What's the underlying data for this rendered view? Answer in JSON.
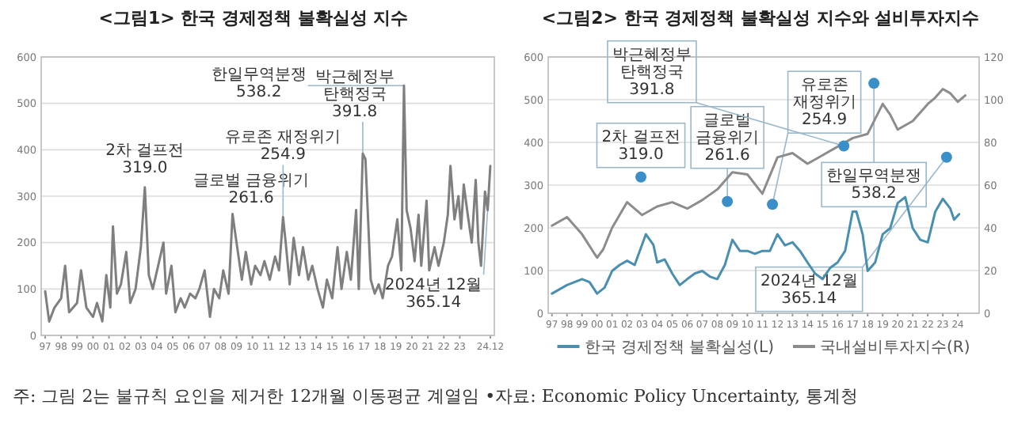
{
  "chart_data": [
    {
      "type": "line",
      "title": "<그림1> 한국 경제정책 불확실성 지수",
      "grid": "y",
      "xlim": [
        "1996-10",
        "2025-03"
      ],
      "xticks": [
        {
          "value": "1997-01",
          "label": "97"
        },
        {
          "value": "1998-01",
          "label": "98"
        },
        {
          "value": "1999-01",
          "label": "99"
        },
        {
          "value": "2000-01",
          "label": "00"
        },
        {
          "value": "2001-01",
          "label": "01"
        },
        {
          "value": "2002-01",
          "label": "02"
        },
        {
          "value": "2003-01",
          "label": "03"
        },
        {
          "value": "2004-01",
          "label": "04"
        },
        {
          "value": "2005-01",
          "label": "05"
        },
        {
          "value": "2006-01",
          "label": "06"
        },
        {
          "value": "2007-01",
          "label": "07"
        },
        {
          "value": "2008-01",
          "label": "08"
        },
        {
          "value": "2009-01",
          "label": "09"
        },
        {
          "value": "2010-01",
          "label": "10"
        },
        {
          "value": "2011-01",
          "label": "11"
        },
        {
          "value": "2012-01",
          "label": "12"
        },
        {
          "value": "2013-01",
          "label": "13"
        },
        {
          "value": "2014-01",
          "label": "14"
        },
        {
          "value": "2015-01",
          "label": "15"
        },
        {
          "value": "2016-01",
          "label": "16"
        },
        {
          "value": "2017-01",
          "label": "17"
        },
        {
          "value": "2018-01",
          "label": "18"
        },
        {
          "value": "2019-01",
          "label": "19"
        },
        {
          "value": "2020-01",
          "label": "20"
        },
        {
          "value": "2021-01",
          "label": "21"
        },
        {
          "value": "2022-01",
          "label": "22"
        },
        {
          "value": "2023-01",
          "label": "23"
        },
        {
          "value": "2024-12",
          "label": "24.12"
        }
      ],
      "ylim": [
        0,
        600
      ],
      "yticks": [
        0,
        100,
        200,
        300,
        400,
        500,
        600
      ],
      "series": [
        {
          "color": "#7f7f7f",
          "x": [
            "1997-01",
            "1997-04",
            "1997-08",
            "1998-01",
            "1998-04",
            "1998-07",
            "1999-01",
            "1999-04",
            "1999-08",
            "2000-01",
            "2000-04",
            "2000-08",
            "2000-11",
            "2001-02",
            "2001-04",
            "2001-07",
            "2001-10",
            "2002-02",
            "2002-05",
            "2002-09",
            "2003-01",
            "2003-04",
            "2003-07",
            "2003-10",
            "2004-02",
            "2004-06",
            "2004-08",
            "2004-12",
            "2005-03",
            "2005-07",
            "2005-10",
            "2006-02",
            "2006-06",
            "2006-09",
            "2007-01",
            "2007-05",
            "2007-08",
            "2007-12",
            "2008-03",
            "2008-07",
            "2008-10",
            "2009-01",
            "2009-05",
            "2009-08",
            "2009-12",
            "2010-03",
            "2010-07",
            "2010-10",
            "2011-02",
            "2011-06",
            "2011-09",
            "2011-12",
            "2012-02",
            "2012-05",
            "2012-08",
            "2012-12",
            "2013-03",
            "2013-07",
            "2013-10",
            "2014-02",
            "2014-06",
            "2014-09",
            "2015-01",
            "2015-05",
            "2015-08",
            "2015-12",
            "2016-03",
            "2016-07",
            "2016-09",
            "2016-12",
            "2017-02",
            "2017-06",
            "2017-09",
            "2017-12",
            "2018-03",
            "2018-07",
            "2018-10",
            "2019-02",
            "2019-05",
            "2019-07",
            "2019-09",
            "2019-12",
            "2020-03",
            "2020-06",
            "2020-08",
            "2020-12",
            "2021-02",
            "2021-06",
            "2021-09",
            "2022-01",
            "2022-04",
            "2022-06",
            "2022-09",
            "2022-12",
            "2023-02",
            "2023-04",
            "2023-07",
            "2023-10",
            "2024-01",
            "2024-03",
            "2024-05",
            "2024-08",
            "2024-10",
            "2024-12"
          ],
          "values": [
            95,
            30,
            60,
            80,
            150,
            50,
            70,
            140,
            60,
            40,
            70,
            30,
            130,
            60,
            235,
            90,
            110,
            180,
            70,
            100,
            190,
            319.0,
            130,
            100,
            150,
            200,
            90,
            150,
            50,
            80,
            60,
            90,
            80,
            100,
            140,
            40,
            100,
            80,
            140,
            90,
            261.6,
            200,
            120,
            180,
            110,
            150,
            130,
            160,
            120,
            170,
            140,
            254.9,
            200,
            110,
            210,
            130,
            190,
            120,
            150,
            100,
            60,
            120,
            80,
            190,
            100,
            180,
            120,
            270,
            100,
            391.8,
            380,
            120,
            90,
            110,
            80,
            150,
            170,
            250,
            140,
            538.2,
            270,
            230,
            160,
            260,
            150,
            290,
            140,
            190,
            150,
            200,
            260,
            365,
            250,
            300,
            230,
            325,
            260,
            200,
            335,
            200,
            150,
            310,
            270,
            365.14
          ]
        }
      ],
      "annotations": [
        {
          "text": "2차 걸프전\n319.0",
          "x": "2003-04",
          "y": 319.0
        },
        {
          "text": "글로벌 금융위기\n261.6",
          "x": "2008-10",
          "y": 261.6
        },
        {
          "text": "유로존 재정위기\n254.9",
          "x": "2011-12",
          "y": 254.9
        },
        {
          "text": "박근혜정부\n탄핵정국\n391.8",
          "x": "2016-12",
          "y": 391.8
        },
        {
          "text": "한일무역분쟁\n538.2",
          "x": "2019-07",
          "y": 538.2
        },
        {
          "text": "2024년 12월\n365.14",
          "x": "2024-12",
          "y": 365.14
        }
      ]
    },
    {
      "type": "line",
      "title": "<그림2> 한국 경제정책 불확실성 지수와 설비투자지수",
      "grid": "y",
      "legend": "bottom",
      "xlim": [
        "1996-10",
        "2025-06"
      ],
      "xticks": [
        {
          "value": "1997-01",
          "label": "97"
        },
        {
          "value": "1998-01",
          "label": "98"
        },
        {
          "value": "1999-01",
          "label": "99"
        },
        {
          "value": "2000-01",
          "label": "00"
        },
        {
          "value": "2001-01",
          "label": "01"
        },
        {
          "value": "2002-01",
          "label": "02"
        },
        {
          "value": "2003-01",
          "label": "03"
        },
        {
          "value": "2004-01",
          "label": "04"
        },
        {
          "value": "2005-01",
          "label": "05"
        },
        {
          "value": "2006-01",
          "label": "06"
        },
        {
          "value": "2007-01",
          "label": "07"
        },
        {
          "value": "2008-01",
          "label": "08"
        },
        {
          "value": "2009-01",
          "label": "09"
        },
        {
          "value": "2010-01",
          "label": "10"
        },
        {
          "value": "2011-01",
          "label": "11"
        },
        {
          "value": "2012-01",
          "label": "12"
        },
        {
          "value": "2013-01",
          "label": "13"
        },
        {
          "value": "2014-01",
          "label": "14"
        },
        {
          "value": "2015-01",
          "label": "15"
        },
        {
          "value": "2016-01",
          "label": "16"
        },
        {
          "value": "2017-01",
          "label": "17"
        },
        {
          "value": "2018-01",
          "label": "18"
        },
        {
          "value": "2019-01",
          "label": "19"
        },
        {
          "value": "2020-01",
          "label": "20"
        },
        {
          "value": "2021-01",
          "label": "21"
        },
        {
          "value": "2022-01",
          "label": "22"
        },
        {
          "value": "2023-01",
          "label": "23"
        },
        {
          "value": "2024-01",
          "label": "24"
        }
      ],
      "ylim": [
        0,
        600
      ],
      "yticks": [
        0,
        100,
        200,
        300,
        400,
        500,
        600
      ],
      "y2lim": [
        0,
        120
      ],
      "y2ticks": [
        0,
        20,
        40,
        60,
        80,
        100,
        120
      ],
      "series": [
        {
          "name": "한국 경제정책 불확실성(L)",
          "color": "#4a8fb0",
          "axis": "y",
          "x": [
            "1997-01",
            "1998-01",
            "1999-01",
            "1999-07",
            "2000-01",
            "2000-07",
            "2001-01",
            "2001-07",
            "2002-01",
            "2002-07",
            "2003-04",
            "2003-10",
            "2004-01",
            "2004-07",
            "2005-01",
            "2005-07",
            "2006-01",
            "2006-07",
            "2007-01",
            "2007-07",
            "2008-01",
            "2008-07",
            "2009-01",
            "2009-07",
            "2010-01",
            "2010-07",
            "2011-01",
            "2011-07",
            "2012-01",
            "2012-07",
            "2013-01",
            "2013-07",
            "2014-01",
            "2014-07",
            "2015-01",
            "2015-07",
            "2016-01",
            "2016-07",
            "2017-01",
            "2017-04",
            "2017-09",
            "2018-01",
            "2018-07",
            "2019-01",
            "2019-07",
            "2020-01",
            "2020-07",
            "2021-01",
            "2021-07",
            "2022-01",
            "2022-07",
            "2023-01",
            "2023-07",
            "2023-10",
            "2024-02"
          ],
          "values": [
            46,
            66,
            80,
            73,
            46,
            60,
            99,
            113,
            123,
            113,
            185,
            160,
            119,
            126,
            93,
            66,
            80,
            93,
            99,
            86,
            80,
            113,
            172,
            146,
            146,
            139,
            146,
            146,
            185,
            159,
            166,
            146,
            119,
            93,
            80,
            106,
            119,
            146,
            238,
            238,
            185,
            99,
            119,
            185,
            199,
            258,
            272,
            199,
            172,
            166,
            238,
            268,
            245,
            219,
            232
          ]
        },
        {
          "name": "국내설비투자지수(R)",
          "color": "#8c8c8c",
          "axis": "y2",
          "x": [
            "1997-01",
            "1998-01",
            "1999-01",
            "2000-01",
            "2000-06",
            "2001-01",
            "2002-01",
            "2003-01",
            "2004-01",
            "2005-01",
            "2006-01",
            "2007-01",
            "2008-01",
            "2009-01",
            "2010-01",
            "2011-01",
            "2012-01",
            "2013-01",
            "2014-01",
            "2015-01",
            "2016-01",
            "2017-01",
            "2018-01",
            "2019-01",
            "2019-07",
            "2020-01",
            "2021-01",
            "2022-01",
            "2022-07",
            "2023-01",
            "2023-07",
            "2024-01",
            "2024-07"
          ],
          "values": [
            41,
            45,
            37,
            26,
            30,
            40,
            52,
            46,
            50,
            52,
            49,
            53,
            58,
            66,
            65,
            56,
            73,
            75,
            70,
            74,
            78,
            82,
            84,
            98,
            93,
            86,
            90,
            98,
            101,
            105,
            103,
            99,
            102
          ]
        },
        {
          "type": "scatter",
          "color": "#3a8fc8",
          "axis": "y",
          "marker": "circle",
          "x": [
            "2002-12",
            "2008-09",
            "2011-09",
            "2016-06",
            "2018-06",
            "2023-04"
          ],
          "values": [
            319.0,
            261.6,
            254.9,
            391.8,
            538.2,
            365.14
          ]
        }
      ],
      "annotations": [
        {
          "text": "2차 걸프전\n319.0",
          "x": "2002-12",
          "y": 319.0
        },
        {
          "text": "글로벌\n금융위기\n261.6",
          "x": "2008-09",
          "y": 261.6
        },
        {
          "text": "유로존\n재정위기\n254.9",
          "x": "2011-09",
          "y": 254.9
        },
        {
          "text": "박근혜정부\n탄핵정국\n391.8",
          "x": "2016-06",
          "y": 391.8
        },
        {
          "text": "한일무역분쟁\n538.2",
          "x": "2018-06",
          "y": 538.2
        },
        {
          "text": "2024년 12월\n365.14",
          "x": "2023-04",
          "y": 365.14
        },
        "주: 그림 2는 불규칙 요인을 제거한 12개월 이동평균 계열임 •자료: Economic Policy Uncertainty, 통계청"
      ]
    }
  ]
}
